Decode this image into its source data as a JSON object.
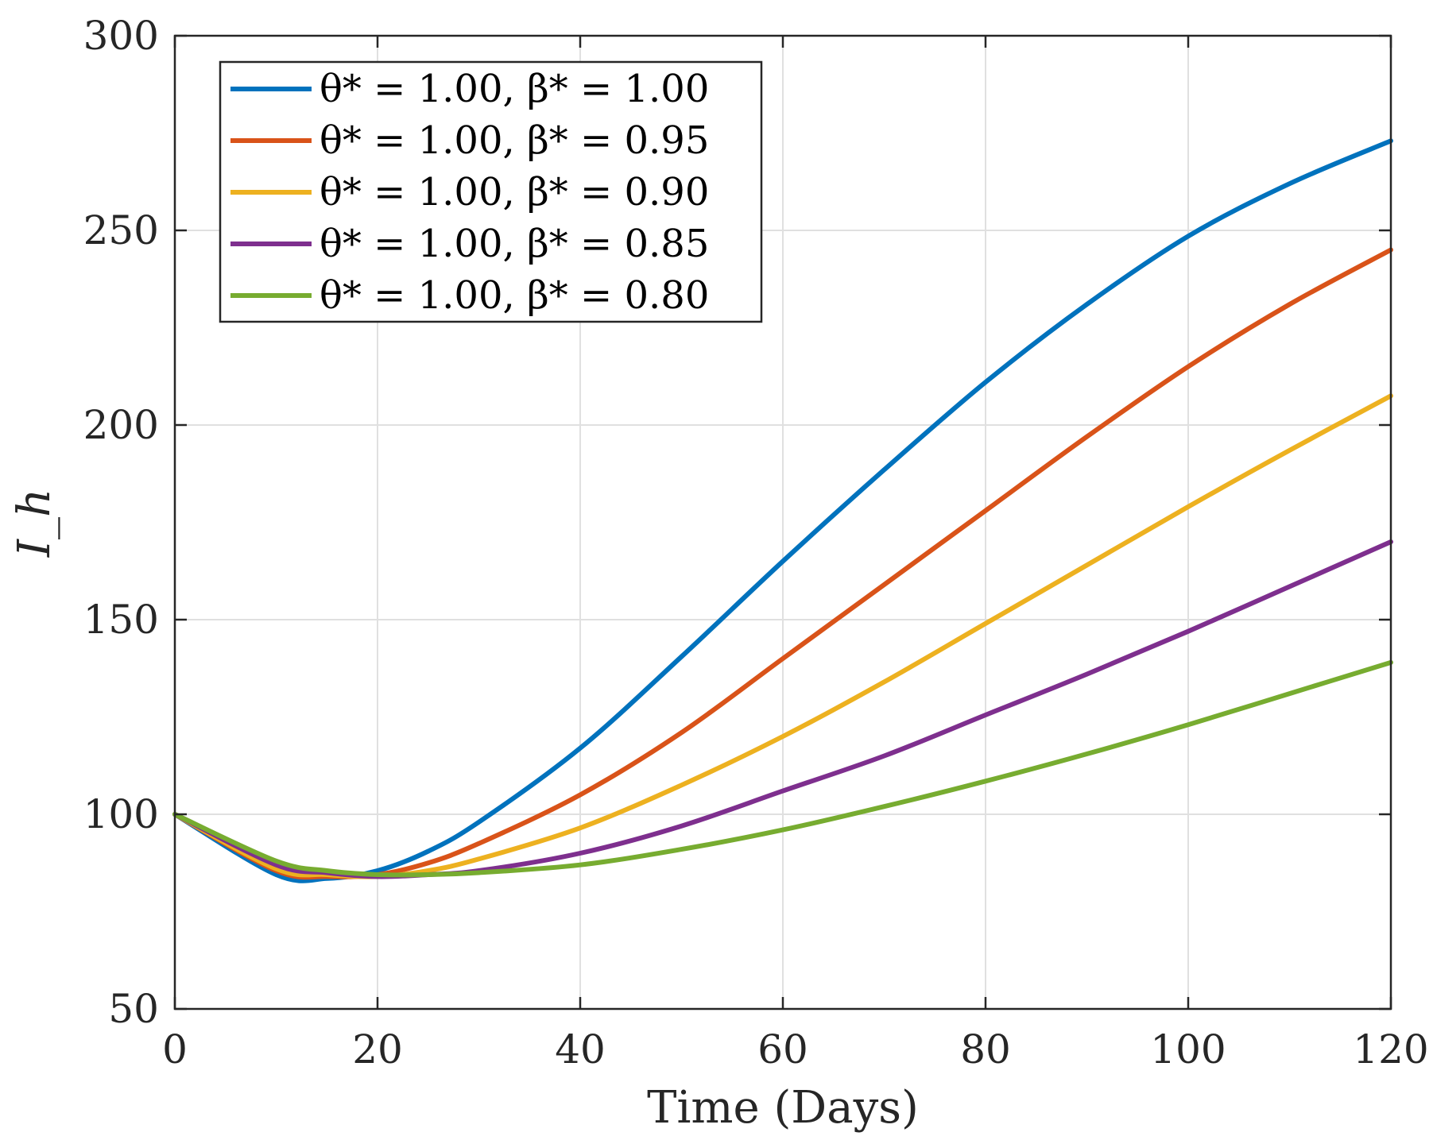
{
  "chart_data": {
    "type": "line",
    "title": "",
    "xlabel": "Time (Days)",
    "ylabel": "I_h",
    "xlim": [
      0,
      120
    ],
    "ylim": [
      50,
      300
    ],
    "xticks": [
      "0",
      "20",
      "40",
      "60",
      "80",
      "100",
      "120"
    ],
    "yticks": [
      "50",
      "100",
      "150",
      "200",
      "250",
      "300"
    ],
    "grid": true,
    "legend_position": "top-left",
    "x": [
      0,
      10,
      15,
      20,
      25,
      30,
      40,
      50,
      60,
      70,
      80,
      90,
      100,
      110,
      120
    ],
    "series": [
      {
        "name": "θ* = 1.00, β* = 1.00",
        "color": "#0072BD",
        "values": [
          100,
          84.5,
          83.5,
          85.5,
          90.5,
          98,
          117,
          140.5,
          165,
          188.5,
          211,
          231,
          248.5,
          262,
          273
        ]
      },
      {
        "name": "θ* = 1.00, β* = 0.95",
        "color": "#D95319",
        "values": [
          100,
          85.5,
          84,
          84.5,
          87.5,
          92.5,
          105,
          121,
          140,
          159,
          178,
          197,
          215,
          231,
          245
        ]
      },
      {
        "name": "θ* = 1.00, β* = 0.90",
        "color": "#EDB120",
        "values": [
          100,
          86,
          84.5,
          84,
          85.5,
          88.5,
          96.5,
          107.5,
          120,
          134,
          149,
          164,
          179,
          193.5,
          207.5
        ]
      },
      {
        "name": "θ* = 1.00, β* = 0.85",
        "color": "#7E2F8E",
        "values": [
          100,
          87,
          85,
          84,
          84.5,
          85.5,
          90,
          97,
          106,
          115,
          125.5,
          136,
          147,
          158.5,
          170
        ]
      },
      {
        "name": "θ* = 1.00, β* = 0.80",
        "color": "#77AC30",
        "values": [
          100,
          88,
          85.5,
          84.5,
          84.5,
          85,
          87,
          91,
          96,
          102,
          108.5,
          115.5,
          123,
          131,
          139
        ]
      }
    ]
  }
}
